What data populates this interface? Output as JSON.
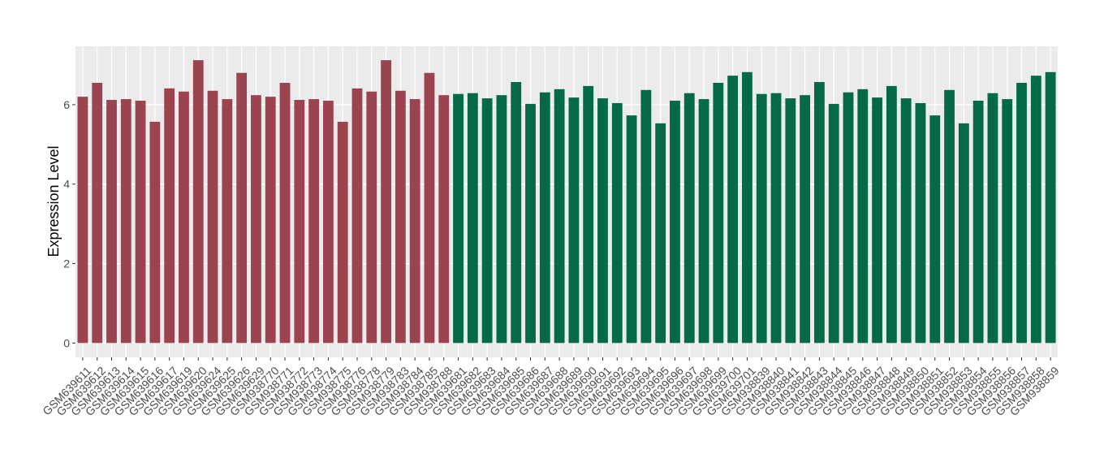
{
  "chart_data": {
    "type": "bar",
    "y_label": "Expression Level",
    "categories": [
      "GSM639611",
      "GSM639612",
      "GSM639613",
      "GSM639614",
      "GSM639615",
      "GSM639616",
      "GSM639617",
      "GSM639619",
      "GSM639620",
      "GSM639624",
      "GSM639625",
      "GSM639626",
      "GSM639629",
      "GSM938770",
      "GSM938771",
      "GSM938772",
      "GSM938773",
      "GSM938774",
      "GSM938775",
      "GSM938776",
      "GSM938778",
      "GSM938779",
      "GSM938783",
      "GSM938784",
      "GSM938785",
      "GSM938788",
      "GSM639681",
      "GSM639682",
      "GSM639683",
      "GSM639684",
      "GSM639685",
      "GSM639686",
      "GSM639687",
      "GSM639688",
      "GSM639689",
      "GSM639690",
      "GSM639691",
      "GSM639692",
      "GSM639693",
      "GSM639694",
      "GSM639695",
      "GSM639696",
      "GSM639697",
      "GSM639698",
      "GSM639699",
      "GSM639700",
      "GSM639701",
      "GSM938839",
      "GSM938840",
      "GSM938841",
      "GSM938842",
      "GSM938843",
      "GSM938844",
      "GSM938845",
      "GSM938846",
      "GSM938847",
      "GSM938848",
      "GSM938849",
      "GSM938850",
      "GSM938851",
      "GSM938852",
      "GSM938853",
      "GSM938854",
      "GSM938855",
      "GSM938856",
      "GSM938857",
      "GSM938858",
      "GSM938859"
    ],
    "values": [
      6.2,
      6.55,
      6.12,
      6.14,
      6.1,
      5.57,
      6.41,
      6.33,
      7.12,
      6.35,
      6.14,
      6.8,
      6.24,
      6.2,
      6.55,
      6.12,
      6.14,
      6.1,
      5.57,
      6.41,
      6.33,
      7.12,
      6.35,
      6.14,
      6.8,
      6.24,
      6.27,
      6.29,
      6.16,
      6.24,
      6.57,
      6.02,
      6.31,
      6.39,
      6.18,
      6.47,
      6.16,
      6.04,
      5.73,
      6.37,
      5.53,
      6.1,
      6.29,
      6.14,
      6.55,
      6.73,
      6.82,
      6.27,
      6.29,
      6.16,
      6.24,
      6.57,
      6.02,
      6.31,
      6.39,
      6.18,
      6.47,
      6.16,
      6.04,
      5.73,
      6.37,
      5.53,
      6.1,
      6.29,
      6.14,
      6.55,
      6.73,
      6.82
    ],
    "colors": [
      "#9b4450",
      "#9b4450",
      "#9b4450",
      "#9b4450",
      "#9b4450",
      "#9b4450",
      "#9b4450",
      "#9b4450",
      "#9b4450",
      "#9b4450",
      "#9b4450",
      "#9b4450",
      "#9b4450",
      "#9b4450",
      "#9b4450",
      "#9b4450",
      "#9b4450",
      "#9b4450",
      "#9b4450",
      "#9b4450",
      "#9b4450",
      "#9b4450",
      "#9b4450",
      "#9b4450",
      "#9b4450",
      "#9b4450",
      "#036a45",
      "#036a45",
      "#036a45",
      "#036a45",
      "#036a45",
      "#036a45",
      "#036a45",
      "#036a45",
      "#036a45",
      "#036a45",
      "#036a45",
      "#036a45",
      "#036a45",
      "#036a45",
      "#036a45",
      "#036a45",
      "#036a45",
      "#036a45",
      "#036a45",
      "#036a45",
      "#036a45",
      "#036a45",
      "#036a45",
      "#036a45",
      "#036a45",
      "#036a45",
      "#036a45",
      "#036a45",
      "#036a45",
      "#036a45",
      "#036a45",
      "#036a45",
      "#036a45",
      "#036a45",
      "#036a45",
      "#036a45",
      "#036a45",
      "#036a45",
      "#036a45",
      "#036a45",
      "#036a45",
      "#036a45"
    ],
    "ylim": [
      -0.36,
      7.47
    ],
    "yticks": [
      0,
      2,
      4,
      6
    ],
    "grid": true
  }
}
